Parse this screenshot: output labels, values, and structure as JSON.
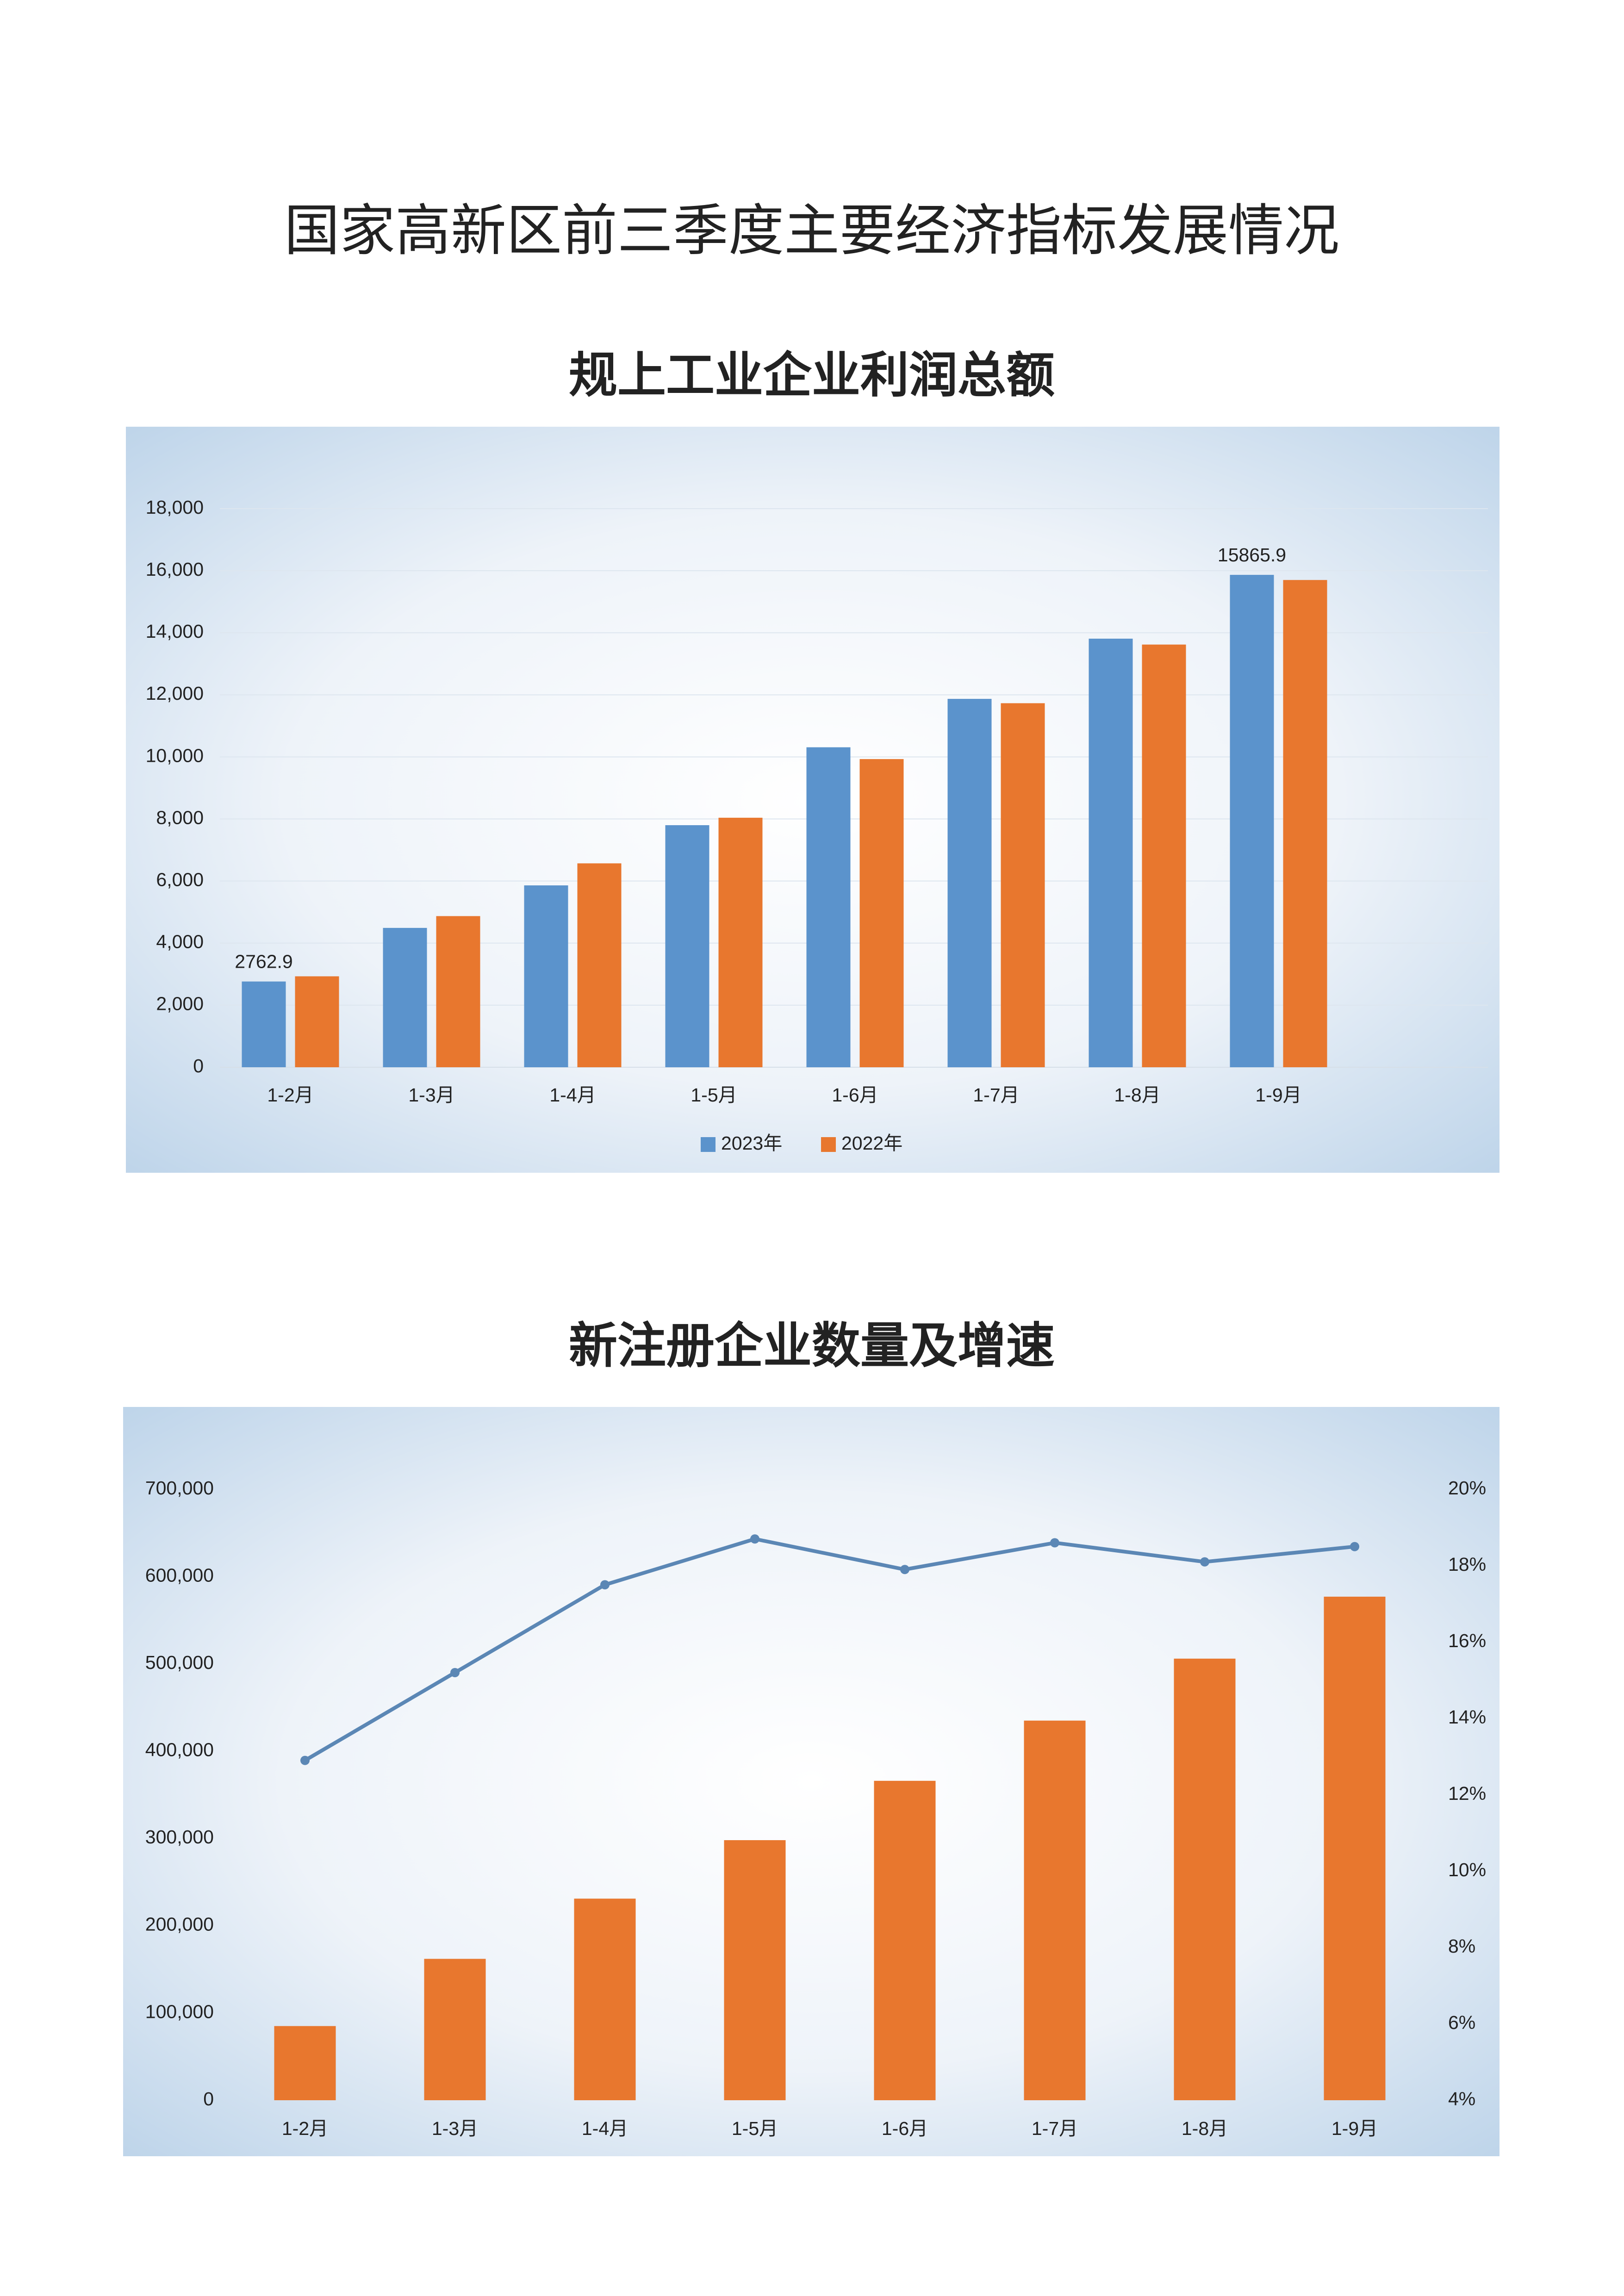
{
  "title": "国家高新区前三季度主要经济指标发展情况",
  "chart_data": [
    {
      "type": "bar",
      "title": "规上工业企业利润总额",
      "categories": [
        "1-2月",
        "1-3月",
        "1-4月",
        "1-5月",
        "1-6月",
        "1-7月",
        "1-8月",
        "1-9月"
      ],
      "series": [
        {
          "name": "2023年",
          "color": "#5b93cc",
          "values": [
            2762.9,
            4490,
            5860,
            7800,
            10310,
            11870,
            13810,
            15865.9
          ],
          "value_labels": [
            "2762.9",
            null,
            null,
            null,
            null,
            null,
            null,
            "15865.9"
          ]
        },
        {
          "name": "2022年",
          "color": "#e8772e",
          "values": [
            2930,
            4870,
            6570,
            8040,
            9930,
            11730,
            13620,
            15700
          ]
        }
      ],
      "ylim": [
        0,
        18000
      ],
      "yticks": [
        0,
        {
          "value": 2000,
          "label": "2,000"
        },
        {
          "value": 4000,
          "label": "4,000"
        },
        {
          "value": 6000,
          "label": "6,000"
        },
        {
          "value": 8000,
          "label": "8,000"
        },
        {
          "value": 10000,
          "label": "10,000"
        },
        {
          "value": 12000,
          "label": "12,000"
        },
        {
          "value": 14000,
          "label": "14,000"
        },
        {
          "value": 16000,
          "label": "16,000"
        },
        {
          "value": 18000,
          "label": "18,000"
        }
      ],
      "grid": true,
      "legend": "bottom"
    },
    {
      "type": "bar",
      "title": "新注册企业数量及增速",
      "categories": [
        "1-2月",
        "1-3月",
        "1-4月",
        "1-5月",
        "1-6月",
        "1-7月",
        "1-8月",
        "1-9月"
      ],
      "series": [
        {
          "color": "#e8772e",
          "values": [
            85000,
            162000,
            231000,
            298000,
            366000,
            435000,
            506000,
            577000
          ]
        },
        {
          "type": "line",
          "axis": "y2",
          "color": "#5b87b5",
          "values": [
            12.9,
            15.2,
            17.5,
            18.7,
            17.9,
            18.6,
            18.1,
            18.5
          ]
        }
      ],
      "ylim": [
        0,
        700000
      ],
      "yticks": [
        0,
        {
          "value": 100000,
          "label": "100,000"
        },
        {
          "value": 200000,
          "label": "200,000"
        },
        {
          "value": 300000,
          "label": "300,000"
        },
        {
          "value": 400000,
          "label": "400,000"
        },
        {
          "value": 500000,
          "label": "500,000"
        },
        {
          "value": 600000,
          "label": "600,000"
        },
        {
          "value": 700000,
          "label": "700,000"
        }
      ],
      "y2lim": [
        4,
        20
      ],
      "y2ticks": [
        {
          "value": 4,
          "label": "4%"
        },
        {
          "value": 6,
          "label": "6%"
        },
        {
          "value": 8,
          "label": "8%"
        },
        {
          "value": 10,
          "label": "10%"
        },
        {
          "value": 12,
          "label": "12%"
        },
        {
          "value": 14,
          "label": "14%"
        },
        {
          "value": 16,
          "label": "16%"
        },
        {
          "value": 18,
          "label": "18%"
        },
        {
          "value": 20,
          "label": "20%"
        }
      ],
      "grid": false
    }
  ]
}
